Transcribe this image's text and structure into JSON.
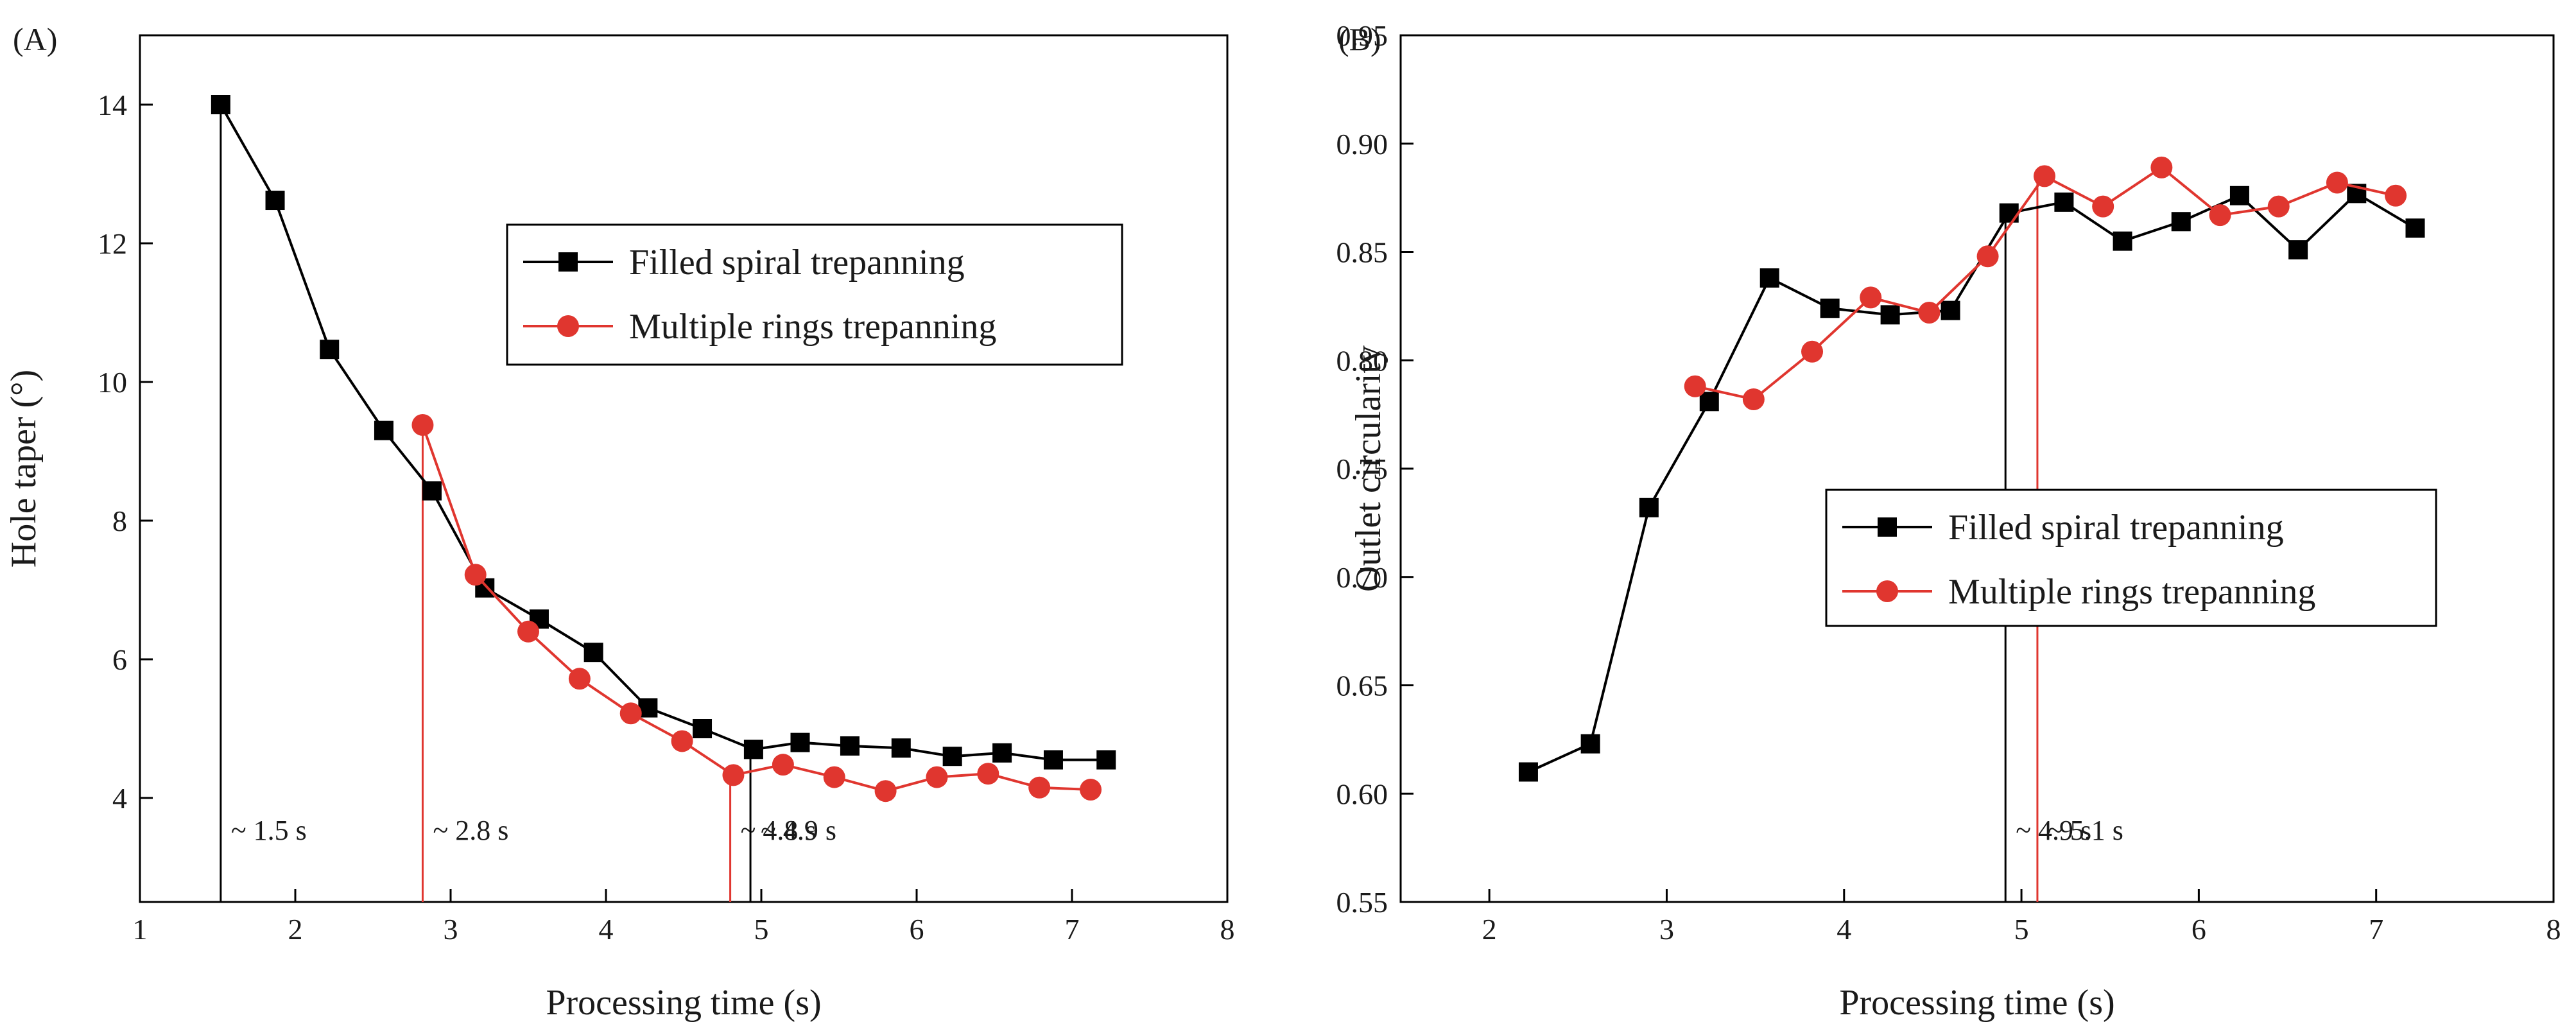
{
  "chart_data": [
    {
      "type": "line",
      "panel_label": "(A)",
      "xlabel": "Processing time (s)",
      "ylabel": "Hole taper (°)",
      "xlim": [
        1,
        8
      ],
      "ylim": [
        2.5,
        15
      ],
      "xticks": [
        1,
        2,
        3,
        4,
        5,
        6,
        7,
        8
      ],
      "yticks": [
        4,
        6,
        8,
        10,
        12,
        14
      ],
      "legend_position": "upper-right",
      "series": [
        {
          "name": "Filled spiral trepanning",
          "color": "#000000",
          "marker": "square",
          "x": [
            1.52,
            1.87,
            2.22,
            2.57,
            2.88,
            3.22,
            3.57,
            3.92,
            4.27,
            4.62,
            4.95,
            5.25,
            5.57,
            5.9,
            6.23,
            6.55,
            6.88,
            7.22
          ],
          "y": [
            14.0,
            12.62,
            10.47,
            9.3,
            8.43,
            7.03,
            6.58,
            6.1,
            5.3,
            5.0,
            4.7,
            4.8,
            4.75,
            4.72,
            4.6,
            4.65,
            4.55,
            4.55
          ]
        },
        {
          "name": "Multiple rings trepanning",
          "color": "#e0362f",
          "marker": "circle",
          "x": [
            2.82,
            3.16,
            3.5,
            3.83,
            4.16,
            4.49,
            4.82,
            5.14,
            5.47,
            5.8,
            6.13,
            6.46,
            6.79,
            7.12
          ],
          "y": [
            9.38,
            7.22,
            6.4,
            5.72,
            5.22,
            4.82,
            4.33,
            4.48,
            4.3,
            4.1,
            4.3,
            4.35,
            4.15,
            4.12
          ]
        }
      ],
      "annotations": [
        {
          "text": "~ 1.5 s",
          "x": 1.52,
          "color": "#000000"
        },
        {
          "text": "~ 2.8 s",
          "x": 2.82,
          "color": "#e0362f"
        },
        {
          "text": "~ 4.8 s",
          "x": 4.8,
          "color": "#e0362f"
        },
        {
          "text": "~ 4.9 s",
          "x": 4.93,
          "color": "#000000"
        }
      ]
    },
    {
      "type": "line",
      "panel_label": "(B)",
      "xlabel": "Processing time (s)",
      "ylabel": "Outlet circularity",
      "xlim": [
        1.5,
        8
      ],
      "ylim": [
        0.55,
        0.95
      ],
      "xticks": [
        2,
        3,
        4,
        5,
        6,
        7,
        8
      ],
      "yticks": [
        0.55,
        0.6,
        0.65,
        0.7,
        0.75,
        0.8,
        0.85,
        0.9,
        0.95
      ],
      "ytick_labels": [
        "0.55",
        "0.60",
        "0.65",
        "0.70",
        "0.75",
        "0.80",
        "0.85",
        "0.90",
        "0.95"
      ],
      "legend_position": "center-right",
      "series": [
        {
          "name": "Filled spiral trepanning",
          "color": "#000000",
          "marker": "square",
          "x": [
            2.22,
            2.57,
            2.9,
            3.24,
            3.58,
            3.92,
            4.26,
            4.6,
            4.93,
            5.24,
            5.57,
            5.9,
            6.23,
            6.56,
            6.89,
            7.22
          ],
          "y": [
            0.61,
            0.623,
            0.732,
            0.781,
            0.838,
            0.824,
            0.821,
            0.823,
            0.868,
            0.873,
            0.855,
            0.864,
            0.876,
            0.851,
            0.877,
            0.861
          ]
        },
        {
          "name": "Multiple rings trepanning",
          "color": "#e0362f",
          "marker": "circle",
          "x": [
            3.16,
            3.49,
            3.82,
            4.15,
            4.48,
            4.81,
            5.13,
            5.46,
            5.79,
            6.12,
            6.45,
            6.78,
            7.11
          ],
          "y": [
            0.788,
            0.782,
            0.804,
            0.829,
            0.822,
            0.848,
            0.885,
            0.871,
            0.889,
            0.867,
            0.871,
            0.882,
            0.876
          ]
        }
      ],
      "annotations": [
        {
          "text": "~ 4.9 s",
          "x": 4.91,
          "color": "#000000"
        },
        {
          "text": "~ 5.1 s",
          "x": 5.09,
          "color": "#e0362f"
        }
      ]
    }
  ]
}
